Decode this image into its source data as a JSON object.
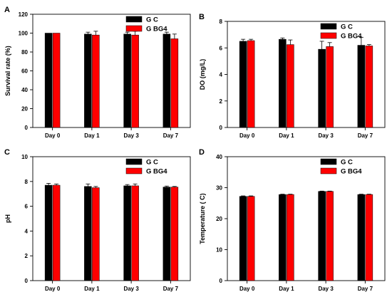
{
  "chart_data": [
    {
      "type": "bar",
      "panel": "A",
      "categories": [
        "Day 0",
        "Day 1",
        "Day 3",
        "Day 7"
      ],
      "series": [
        {
          "name": "G C",
          "color": "#000000",
          "values": [
            100,
            99,
            99,
            99
          ],
          "errors": [
            0,
            2,
            2,
            2
          ]
        },
        {
          "name": "G BG4",
          "color": "#ff0000",
          "values": [
            100,
            98,
            98,
            94
          ],
          "errors": [
            0,
            4,
            4,
            5
          ]
        }
      ],
      "xlabel": "",
      "ylabel": "Survival rate (%)",
      "ylim": [
        0,
        120
      ],
      "yticks": [
        0,
        20,
        40,
        60,
        80,
        100,
        120
      ],
      "legend_position": "top-right",
      "grid": false
    },
    {
      "type": "bar",
      "panel": "B",
      "categories": [
        "Day 0",
        "Day 1",
        "Day 3",
        "Day 7"
      ],
      "series": [
        {
          "name": "G C",
          "color": "#000000",
          "values": [
            6.5,
            6.65,
            5.9,
            6.2
          ],
          "errors": [
            0.15,
            0.1,
            0.6,
            0.6
          ]
        },
        {
          "name": "G BG4",
          "color": "#ff0000",
          "values": [
            6.55,
            6.25,
            6.1,
            6.15
          ],
          "errors": [
            0.1,
            0.35,
            0.3,
            0.1
          ]
        }
      ],
      "xlabel": "",
      "ylabel": "DO (mg/L)",
      "ylim": [
        0,
        8
      ],
      "yticks": [
        0,
        2,
        4,
        6,
        8
      ],
      "legend_position": "top-right",
      "grid": false
    },
    {
      "type": "bar",
      "panel": "C",
      "categories": [
        "Day 0",
        "Day 1",
        "Day 3",
        "Day 7"
      ],
      "series": [
        {
          "name": "G C",
          "color": "#000000",
          "values": [
            7.7,
            7.6,
            7.65,
            7.55
          ],
          "errors": [
            0.15,
            0.2,
            0.1,
            0.08
          ]
        },
        {
          "name": "G BG4",
          "color": "#ff0000",
          "values": [
            7.7,
            7.5,
            7.65,
            7.55
          ],
          "errors": [
            0.1,
            0.1,
            0.15,
            0.05
          ]
        }
      ],
      "xlabel": "",
      "ylabel": "pH",
      "ylim": [
        0,
        10
      ],
      "yticks": [
        0,
        2,
        4,
        6,
        8,
        10
      ],
      "legend_position": "top-right",
      "grid": false
    },
    {
      "type": "bar",
      "panel": "D",
      "categories": [
        "Day 0",
        "Day 1",
        "Day 3",
        "Day 7"
      ],
      "series": [
        {
          "name": "G C",
          "color": "#000000",
          "values": [
            27.2,
            27.8,
            28.8,
            27.8
          ],
          "errors": [
            0.15,
            0.1,
            0.1,
            0.1
          ]
        },
        {
          "name": "G BG4",
          "color": "#ff0000",
          "values": [
            27.2,
            27.8,
            28.8,
            27.8
          ],
          "errors": [
            0.15,
            0.1,
            0.1,
            0.1
          ]
        }
      ],
      "xlabel": "",
      "ylabel": "Temperature ( C)",
      "ylim": [
        0,
        40
      ],
      "yticks": [
        0,
        10,
        20,
        30,
        40
      ],
      "legend_position": "top-right",
      "grid": false
    }
  ]
}
